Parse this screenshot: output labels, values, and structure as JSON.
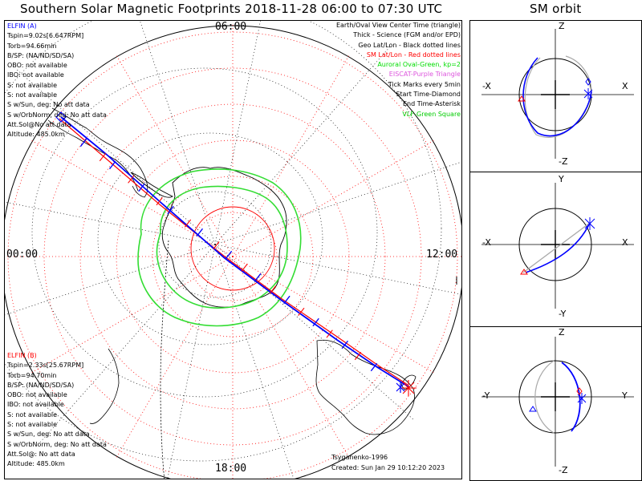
{
  "title": "Southern Solar Magnetic Footprints 2018-11-28 06:00 to 07:30 UTC",
  "orbit_title": "SM orbit",
  "clock_labels": {
    "top": "06:00",
    "left": "00:00",
    "right": "12:00",
    "bottom": "18:00"
  },
  "elfin_a": {
    "label": "ELFIN (A)",
    "color": "#0000ff",
    "lines": [
      "Tspin=9.02s[6.647RPM]",
      "Torb=94.66min",
      "B/SP: (NA/ND/SD/SA)",
      "OBO: not available",
      "IBO: not available",
      "S: not available",
      "S: not available",
      "S w/Sun, deg: No att data",
      "S w/OrbNorm, deg: No att data",
      "Att.Sol@No att data",
      "Altitude: 485.0km"
    ]
  },
  "elfin_b": {
    "label": "ELFIN (B)",
    "color": "#ff0000",
    "lines": [
      "Tspin=2.33s[25.67RPM]",
      "Torb=94.70min",
      "B/SP: (NA/ND/SD/SA)",
      "OBO: not available",
      "IBO: not available",
      "S: not available",
      "S: not available",
      "S w/Sun, deg: No att data",
      "S w/OrbNorm, deg: No att data",
      "Att.Sol@: No att data",
      "Altitude: 485.0km"
    ]
  },
  "legend": [
    {
      "text": "Earth/Oval View Center Time (triangle)",
      "color": "#000000"
    },
    {
      "text": "Thick - Science (FGM and/or EPD)",
      "color": "#000000"
    },
    {
      "text": "Geo Lat/Lon - Black dotted lines",
      "color": "#000000"
    },
    {
      "text": "SM Lat/Lon - Red dotted lines",
      "color": "#ff0000"
    },
    {
      "text": "Auroral Oval-Green, kp=2",
      "color": "#00dd00"
    },
    {
      "text": "EISCAT-Purple Triangle",
      "color": "#dd55dd"
    },
    {
      "text": "Tick Marks every 5min",
      "color": "#000000"
    },
    {
      "text": "Start Time-Diamond",
      "color": "#000000"
    },
    {
      "text": "End Time-Asterisk",
      "color": "#000000"
    },
    {
      "text": "VLF-Green Square",
      "color": "#00cc00"
    }
  ],
  "footer": {
    "model": "Tsyganenko-1996",
    "created": "Created: Sun Jan 29 10:12:20 2023"
  },
  "orbit_panels": [
    {
      "top": "Z",
      "bottom": "-Z",
      "left": "-X",
      "right": "X"
    },
    {
      "top": "Y",
      "bottom": "-Y",
      "left": "-X",
      "right": "X"
    },
    {
      "top": "Z",
      "bottom": "-Z",
      "left": "-Y",
      "right": "Y"
    }
  ],
  "colors": {
    "elfin_a": "#0000ff",
    "elfin_b": "#ff0000",
    "oval": "#00dd00",
    "sm_grid": "#ff0000",
    "geo_grid": "#000000"
  },
  "chart_data": {
    "type": "scatter",
    "projection": "south polar, SM magnetic local time",
    "time_range": [
      "2018-11-28 06:00",
      "2018-11-28 07:30"
    ],
    "tick_interval_min": 5,
    "auroral_oval_kp": 2
  }
}
